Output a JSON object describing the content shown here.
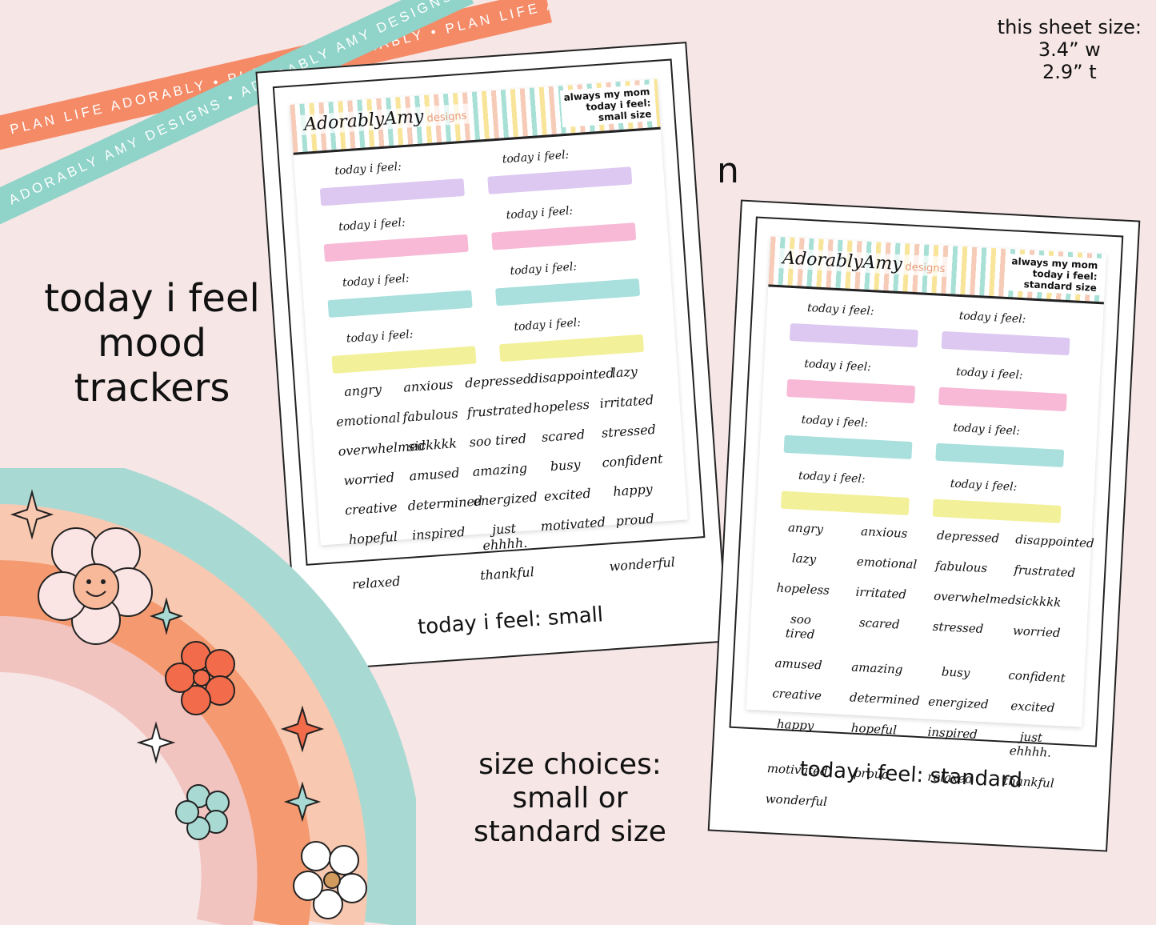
{
  "ribbons": {
    "orange_text": "PLAN LIFE ADORABLY • PLAN LIFE ADORABLY • PLAN LIFE ADORABLY",
    "teal_text": "ADORABLY AMY DESIGNS • ADORABLY AMY DESIGNS • ADORABLY AMY DESIGNS"
  },
  "sheet_size": {
    "label": "this sheet size:",
    "width": "3.4” w",
    "height": "2.9” t"
  },
  "title": {
    "line1": "today i feel",
    "line2": "mood",
    "line3": "trackers"
  },
  "size_choices": {
    "line1": "size choices:",
    "line2": "small or",
    "line3": "standard size"
  },
  "stray_letter": "n",
  "brand": {
    "name": "AdorablyAmy",
    "sub": "designs"
  },
  "small_sheet": {
    "header_line1": "always my mom",
    "header_line2": "today i feel:",
    "header_line3": "small size",
    "caption": "today i feel: small"
  },
  "standard_sheet": {
    "header_line1": "always my mom",
    "header_line2": "today i feel:",
    "header_line3": "standard size",
    "caption": "today i feel: standard"
  },
  "tracker_label": "today i feel:",
  "swatch_colors": [
    "#dcc8f0",
    "#f7b9d6",
    "#a9e0de",
    "#f3f09a"
  ],
  "mood_words": [
    "angry",
    "anxious",
    "depressed",
    "disappointed",
    "lazy",
    "emotional",
    "fabulous",
    "frustrated",
    "hopeless",
    "irritated",
    "overwhelmed",
    "sickkkk",
    "soo tired",
    "scared",
    "stressed",
    "worried",
    "amused",
    "amazing",
    "busy",
    "confident",
    "creative",
    "determined",
    "energized",
    "excited",
    "happy",
    "hopeful",
    "inspired",
    "just ehhhh.",
    "motivated",
    "proud",
    "relaxed",
    "thankful",
    "wonderful"
  ],
  "icons": [
    "sparkle-icon",
    "smiley-flower-icon",
    "flower-icon"
  ]
}
